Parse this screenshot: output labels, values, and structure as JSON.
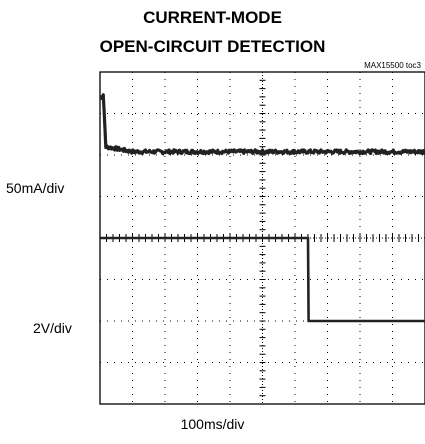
{
  "chart_data": {
    "type": "line",
    "title": "CURRENT-MODE",
    "subtitle": "OPEN-CIRCUIT DETECTION",
    "figure_id": "MAX15500 toc3",
    "xlabel": "100ms/div",
    "grid": true,
    "x_divisions": 10,
    "y_divisions": 8,
    "series": [
      {
        "channel": "current",
        "scale_label": "50mA/div",
        "x": [
          0,
          0.08,
          0.1,
          0.18,
          1.0,
          10.0
        ],
        "y": [
          3.4,
          3.4,
          3.45,
          2.2,
          2.08,
          2.08
        ]
      },
      {
        "channel": "voltage",
        "scale_label": "2V/div",
        "x": [
          0,
          6.4,
          6.42,
          10.0
        ],
        "y": [
          0.0,
          0.0,
          -2.0,
          -2.0
        ]
      }
    ]
  }
}
